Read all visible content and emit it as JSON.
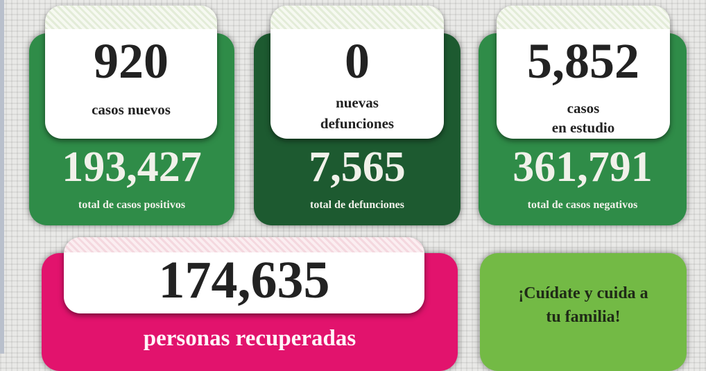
{
  "colors": {
    "green": "#2f8c48",
    "dark_green": "#1d5a30",
    "pink": "#e2136d",
    "lime": "#73ba45"
  },
  "cards": [
    {
      "top_value": "920",
      "top_label": "casos nuevos",
      "total": "193,427",
      "total_label": "total de casos positivos"
    },
    {
      "top_value": "0",
      "top_label_1": "nuevas",
      "top_label_2": "defunciones",
      "total": "7,565",
      "total_label": "total de defunciones"
    },
    {
      "top_value": "5,852",
      "top_label_1": "casos",
      "top_label_2": "en estudio",
      "total": "361,791",
      "total_label": "total de casos negativos"
    }
  ],
  "recovered": {
    "value": "174,635",
    "label": "personas recuperadas"
  },
  "message": {
    "line1": "¡Cuídate y cuida a",
    "line2": "tu familia!"
  }
}
